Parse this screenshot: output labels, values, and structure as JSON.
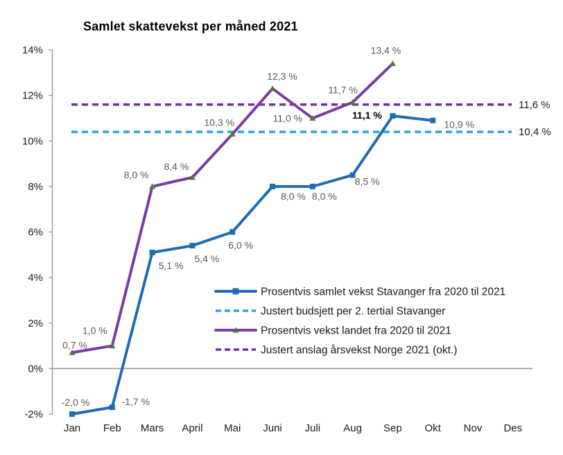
{
  "title": "Samlet skattevekst per måned 2021",
  "chart_data": {
    "type": "line",
    "title": "Samlet skattevekst per måned 2021",
    "categories": [
      "Jan",
      "Feb",
      "Mars",
      "April",
      "Mai",
      "Juni",
      "Juli",
      "Aug",
      "Sep",
      "Okt",
      "Nov",
      "Des"
    ],
    "ylim": [
      -2,
      14
    ],
    "ytick_step": 2,
    "ytick_labels": [
      "-2%",
      "0%",
      "2%",
      "4%",
      "6%",
      "8%",
      "10%",
      "12%",
      "14%"
    ],
    "grid": false,
    "legend_position": "inside-bottom-right",
    "series": [
      {
        "id": "stavanger",
        "name": "Prosentvis samlet vekst Stavanger fra 2020 til 2021",
        "kind": "line",
        "style": "solid",
        "marker": "square",
        "color": "#1F6CB4",
        "marker_color": "#1F6CB4",
        "values": [
          -2.0,
          -1.7,
          5.1,
          5.4,
          6.0,
          8.0,
          8.0,
          8.5,
          11.1,
          10.9
        ],
        "labels": [
          "-2,0 %",
          "-1,7 %",
          "5,1 %",
          "5,4 %",
          "6,0 %",
          "8,0 %",
          "8,0 %",
          "8,5 %",
          "11,1 %",
          "10,9 %"
        ],
        "label_offsets": [
          [
            5,
            -17
          ],
          [
            34,
            -8
          ],
          [
            27,
            19
          ],
          [
            21,
            19
          ],
          [
            12,
            19
          ],
          [
            30,
            14
          ],
          [
            17,
            14
          ],
          [
            21,
            9
          ],
          [
            -37,
            -1
          ],
          [
            38,
            6
          ]
        ],
        "emphasized_labels": [
          8
        ]
      },
      {
        "id": "budsjett",
        "name": "Justert budsjett per 2. tertial Stavanger",
        "kind": "hline",
        "style": "dashed",
        "color": "#31A3DC",
        "value": 10.4,
        "right_label": "10,4 %"
      },
      {
        "id": "landet",
        "name": "Prosentvis vekst landet fra 2020 til 2021",
        "kind": "line",
        "style": "solid",
        "marker": "triangle",
        "color": "#7A3BA3",
        "marker_color": "#4E7B35",
        "values": [
          0.7,
          1.0,
          8.0,
          8.4,
          10.3,
          12.3,
          11.0,
          11.7,
          13.4
        ],
        "labels": [
          "0,7 %",
          "1,0 %",
          "8,0 %",
          "8,4 %",
          "10,3 %",
          "12,3 %",
          "11,0 %",
          "11,7 %",
          "13,4 %"
        ],
        "label_offsets": [
          [
            4,
            -11
          ],
          [
            -25,
            -22
          ],
          [
            -23,
            -17
          ],
          [
            -23,
            -16
          ],
          [
            -19,
            -17
          ],
          [
            14,
            -18
          ],
          [
            -36,
            0
          ],
          [
            -14,
            -18
          ],
          [
            -10,
            -19
          ]
        ],
        "emphasized_labels": []
      },
      {
        "id": "anslag",
        "name": "Justert anslag årsvekst Norge 2021 (okt.)",
        "kind": "hline",
        "style": "dashed",
        "color": "#7030A0",
        "value": 11.6,
        "right_label": "11,6 %"
      }
    ],
    "colors": {
      "data_label": "#595959",
      "data_label_emphasis": "#000000",
      "axis_line": "#9A9A9A",
      "zero_line": "#8F8F8F",
      "tick_label": "#1A1A1A",
      "legend_text": "#1A1A1A"
    }
  }
}
